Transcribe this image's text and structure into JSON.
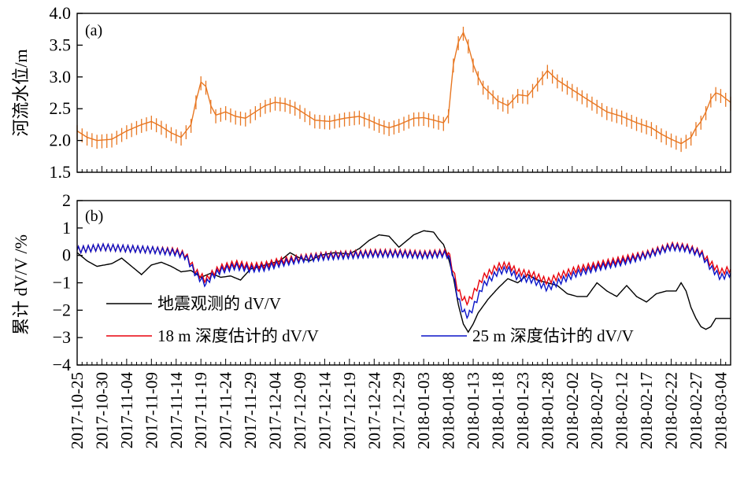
{
  "chart_data": [
    {
      "type": "line",
      "panel_label": "(a)",
      "ylabel": "河流水位/m",
      "ylim": [
        1.5,
        4.0
      ],
      "yticks": [
        "1.5",
        "2.0",
        "2.5",
        "3.0",
        "3.5",
        "4.0"
      ],
      "x_start": "2017-10-25",
      "x_end": "2018-03-06",
      "series": [
        {
          "name": "",
          "color": "#E87722",
          "points": [
            [
              "2017-10-25",
              2.15
            ],
            [
              "2017-10-27",
              2.05
            ],
            [
              "2017-10-29",
              2.0
            ],
            [
              "2017-11-01",
              2.02
            ],
            [
              "2017-11-04",
              2.15
            ],
            [
              "2017-11-07",
              2.25
            ],
            [
              "2017-11-09",
              2.3
            ],
            [
              "2017-11-11",
              2.22
            ],
            [
              "2017-11-13",
              2.12
            ],
            [
              "2017-11-15",
              2.05
            ],
            [
              "2017-11-17",
              2.25
            ],
            [
              "2017-11-18",
              2.62
            ],
            [
              "2017-11-19",
              2.92
            ],
            [
              "2017-11-20",
              2.85
            ],
            [
              "2017-11-21",
              2.55
            ],
            [
              "2017-11-22",
              2.4
            ],
            [
              "2017-11-24",
              2.45
            ],
            [
              "2017-11-26",
              2.38
            ],
            [
              "2017-11-28",
              2.35
            ],
            [
              "2017-11-30",
              2.45
            ],
            [
              "2017-12-02",
              2.55
            ],
            [
              "2017-12-04",
              2.6
            ],
            [
              "2017-12-06",
              2.58
            ],
            [
              "2017-12-08",
              2.52
            ],
            [
              "2017-12-10",
              2.42
            ],
            [
              "2017-12-12",
              2.32
            ],
            [
              "2017-12-15",
              2.3
            ],
            [
              "2017-12-18",
              2.35
            ],
            [
              "2017-12-21",
              2.38
            ],
            [
              "2017-12-23",
              2.32
            ],
            [
              "2017-12-25",
              2.25
            ],
            [
              "2017-12-27",
              2.2
            ],
            [
              "2017-12-29",
              2.25
            ],
            [
              "2018-01-01",
              2.35
            ],
            [
              "2018-01-03",
              2.36
            ],
            [
              "2018-01-06",
              2.3
            ],
            [
              "2018-01-07",
              2.28
            ],
            [
              "2018-01-08",
              2.4
            ],
            [
              "2018-01-09",
              3.2
            ],
            [
              "2018-01-10",
              3.55
            ],
            [
              "2018-01-11",
              3.7
            ],
            [
              "2018-01-12",
              3.5
            ],
            [
              "2018-01-13",
              3.2
            ],
            [
              "2018-01-14",
              3.0
            ],
            [
              "2018-01-15",
              2.85
            ],
            [
              "2018-01-17",
              2.7
            ],
            [
              "2018-01-18",
              2.62
            ],
            [
              "2018-01-20",
              2.55
            ],
            [
              "2018-01-22",
              2.72
            ],
            [
              "2018-01-24",
              2.7
            ],
            [
              "2018-01-26",
              2.9
            ],
            [
              "2018-01-28",
              3.1
            ],
            [
              "2018-01-30",
              2.95
            ],
            [
              "2018-02-01",
              2.85
            ],
            [
              "2018-02-03",
              2.75
            ],
            [
              "2018-02-06",
              2.6
            ],
            [
              "2018-02-09",
              2.45
            ],
            [
              "2018-02-12",
              2.38
            ],
            [
              "2018-02-15",
              2.28
            ],
            [
              "2018-02-18",
              2.2
            ],
            [
              "2018-02-20",
              2.1
            ],
            [
              "2018-02-22",
              2.02
            ],
            [
              "2018-02-24",
              1.95
            ],
            [
              "2018-02-26",
              2.05
            ],
            [
              "2018-02-27",
              2.2
            ],
            [
              "2018-02-28",
              2.3
            ],
            [
              "2018-03-01",
              2.45
            ],
            [
              "2018-03-02",
              2.65
            ],
            [
              "2018-03-03",
              2.75
            ],
            [
              "2018-03-04",
              2.72
            ],
            [
              "2018-03-06",
              2.6
            ]
          ]
        }
      ]
    },
    {
      "type": "line",
      "panel_label": "(b)",
      "ylabel": "累计 dV/V /%",
      "ylim": [
        -4,
        2
      ],
      "yticks": [
        "−4",
        "−3",
        "−2",
        "−1",
        "0",
        "1",
        "2"
      ],
      "x_start": "2017-10-25",
      "x_end": "2018-03-06",
      "xtick_labels": [
        "2017-10-25",
        "2017-10-30",
        "2017-11-04",
        "2017-11-09",
        "2017-11-14",
        "2017-11-19",
        "2017-11-24",
        "2017-11-29",
        "2017-12-04",
        "2017-12-09",
        "2017-12-14",
        "2017-12-19",
        "2017-12-24",
        "2017-12-29",
        "2018-01-03",
        "2018-01-08",
        "2018-01-13",
        "2018-01-18",
        "2018-01-23",
        "2018-01-28",
        "2018-02-02",
        "2018-02-07",
        "2018-02-12",
        "2018-02-17",
        "2018-02-22",
        "2018-02-27",
        "2018-03-04"
      ],
      "legend": {
        "placement": "lower-left"
      },
      "series": [
        {
          "name": "地震观测的 dV/V",
          "color": "#000000",
          "points": [
            [
              "2017-10-25",
              0.1
            ],
            [
              "2017-10-27",
              -0.2
            ],
            [
              "2017-10-29",
              -0.4
            ],
            [
              "2017-11-01",
              -0.3
            ],
            [
              "2017-11-03",
              -0.1
            ],
            [
              "2017-11-05",
              -0.4
            ],
            [
              "2017-11-07",
              -0.7
            ],
            [
              "2017-11-09",
              -0.35
            ],
            [
              "2017-11-11",
              -0.25
            ],
            [
              "2017-11-13",
              -0.4
            ],
            [
              "2017-11-15",
              -0.6
            ],
            [
              "2017-11-17",
              -0.55
            ],
            [
              "2017-11-19",
              -0.8
            ],
            [
              "2017-11-21",
              -0.65
            ],
            [
              "2017-11-23",
              -0.8
            ],
            [
              "2017-11-25",
              -0.75
            ],
            [
              "2017-11-27",
              -0.9
            ],
            [
              "2017-11-29",
              -0.5
            ],
            [
              "2017-12-01",
              -0.4
            ],
            [
              "2017-12-03",
              -0.3
            ],
            [
              "2017-12-05",
              -0.2
            ],
            [
              "2017-12-07",
              0.1
            ],
            [
              "2017-12-09",
              -0.1
            ],
            [
              "2017-12-11",
              -0.2
            ],
            [
              "2017-12-13",
              0.0
            ],
            [
              "2017-12-16",
              0.1
            ],
            [
              "2017-12-19",
              0.05
            ],
            [
              "2017-12-21",
              0.25
            ],
            [
              "2017-12-23",
              0.55
            ],
            [
              "2017-12-25",
              0.75
            ],
            [
              "2017-12-27",
              0.7
            ],
            [
              "2017-12-29",
              0.3
            ],
            [
              "2017-12-31",
              0.6
            ],
            [
              "2018-01-01",
              0.75
            ],
            [
              "2018-01-03",
              0.9
            ],
            [
              "2018-01-05",
              0.85
            ],
            [
              "2018-01-06",
              0.6
            ],
            [
              "2018-01-07",
              0.4
            ],
            [
              "2018-01-08",
              -0.1
            ],
            [
              "2018-01-09",
              -0.8
            ],
            [
              "2018-01-10",
              -1.8
            ],
            [
              "2018-01-11",
              -2.5
            ],
            [
              "2018-01-12",
              -2.8
            ],
            [
              "2018-01-13",
              -2.5
            ],
            [
              "2018-01-14",
              -2.1
            ],
            [
              "2018-01-16",
              -1.6
            ],
            [
              "2018-01-18",
              -1.2
            ],
            [
              "2018-01-20",
              -0.85
            ],
            [
              "2018-01-22",
              -1.0
            ],
            [
              "2018-01-24",
              -0.7
            ],
            [
              "2018-01-26",
              -0.9
            ],
            [
              "2018-01-28",
              -1.0
            ],
            [
              "2018-01-30",
              -1.1
            ],
            [
              "2018-02-01",
              -1.4
            ],
            [
              "2018-02-03",
              -1.5
            ],
            [
              "2018-02-05",
              -1.5
            ],
            [
              "2018-02-07",
              -1.0
            ],
            [
              "2018-02-09",
              -1.3
            ],
            [
              "2018-02-11",
              -1.5
            ],
            [
              "2018-02-13",
              -1.1
            ],
            [
              "2018-02-15",
              -1.5
            ],
            [
              "2018-02-17",
              -1.7
            ],
            [
              "2018-02-19",
              -1.4
            ],
            [
              "2018-02-21",
              -1.3
            ],
            [
              "2018-02-23",
              -1.3
            ],
            [
              "2018-02-24",
              -1.0
            ],
            [
              "2018-02-25",
              -1.3
            ],
            [
              "2018-02-26",
              -1.9
            ],
            [
              "2018-02-27",
              -2.3
            ],
            [
              "2018-02-28",
              -2.6
            ],
            [
              "2018-03-01",
              -2.7
            ],
            [
              "2018-03-02",
              -2.6
            ],
            [
              "2018-03-03",
              -2.3
            ],
            [
              "2018-03-06",
              -2.3
            ]
          ]
        },
        {
          "name": "18 m 深度估计的 dV/V",
          "color": "#E8000B",
          "points": [
            [
              "2017-10-25",
              0.2
            ],
            [
              "2017-10-30",
              0.3
            ],
            [
              "2017-11-04",
              0.25
            ],
            [
              "2017-11-09",
              0.2
            ],
            [
              "2017-11-14",
              0.15
            ],
            [
              "2017-11-16",
              0.0
            ],
            [
              "2017-11-18",
              -0.6
            ],
            [
              "2017-11-20",
              -0.9
            ],
            [
              "2017-11-21",
              -0.7
            ],
            [
              "2017-11-23",
              -0.45
            ],
            [
              "2017-11-26",
              -0.3
            ],
            [
              "2017-11-29",
              -0.4
            ],
            [
              "2017-12-02",
              -0.35
            ],
            [
              "2017-12-05",
              -0.2
            ],
            [
              "2017-12-09",
              -0.1
            ],
            [
              "2017-12-14",
              0.0
            ],
            [
              "2017-12-19",
              0.05
            ],
            [
              "2017-12-24",
              0.1
            ],
            [
              "2017-12-29",
              0.1
            ],
            [
              "2018-01-03",
              0.05
            ],
            [
              "2018-01-07",
              0.1
            ],
            [
              "2018-01-08",
              0.1
            ],
            [
              "2018-01-09",
              -0.6
            ],
            [
              "2018-01-10",
              -1.3
            ],
            [
              "2018-01-11",
              -1.6
            ],
            [
              "2018-01-12",
              -1.7
            ],
            [
              "2018-01-13",
              -1.4
            ],
            [
              "2018-01-15",
              -0.8
            ],
            [
              "2018-01-18",
              -0.4
            ],
            [
              "2018-01-20",
              -0.35
            ],
            [
              "2018-01-22",
              -0.6
            ],
            [
              "2018-01-25",
              -0.7
            ],
            [
              "2018-01-28",
              -0.95
            ],
            [
              "2018-01-31",
              -0.7
            ],
            [
              "2018-02-03",
              -0.5
            ],
            [
              "2018-02-07",
              -0.35
            ],
            [
              "2018-02-12",
              -0.15
            ],
            [
              "2018-02-17",
              0.05
            ],
            [
              "2018-02-22",
              0.35
            ],
            [
              "2018-02-25",
              0.3
            ],
            [
              "2018-02-28",
              0.1
            ],
            [
              "2018-03-02",
              -0.3
            ],
            [
              "2018-03-04",
              -0.6
            ],
            [
              "2018-03-06",
              -0.5
            ]
          ]
        },
        {
          "name": "25 m 深度估计的 dV/V",
          "color": "#0A14C8",
          "points": [
            [
              "2017-10-25",
              0.2
            ],
            [
              "2017-10-30",
              0.3
            ],
            [
              "2017-11-04",
              0.25
            ],
            [
              "2017-11-09",
              0.2
            ],
            [
              "2017-11-14",
              0.1
            ],
            [
              "2017-11-16",
              -0.05
            ],
            [
              "2017-11-18",
              -0.7
            ],
            [
              "2017-11-20",
              -1.05
            ],
            [
              "2017-11-21",
              -0.8
            ],
            [
              "2017-11-23",
              -0.55
            ],
            [
              "2017-11-26",
              -0.4
            ],
            [
              "2017-11-29",
              -0.5
            ],
            [
              "2017-12-02",
              -0.45
            ],
            [
              "2017-12-05",
              -0.3
            ],
            [
              "2017-12-09",
              -0.15
            ],
            [
              "2017-12-14",
              -0.05
            ],
            [
              "2017-12-19",
              0.0
            ],
            [
              "2017-12-24",
              0.05
            ],
            [
              "2017-12-29",
              0.05
            ],
            [
              "2018-01-03",
              0.0
            ],
            [
              "2018-01-07",
              0.05
            ],
            [
              "2018-01-08",
              0.0
            ],
            [
              "2018-01-09",
              -0.8
            ],
            [
              "2018-01-10",
              -1.6
            ],
            [
              "2018-01-11",
              -2.05
            ],
            [
              "2018-01-12",
              -2.2
            ],
            [
              "2018-01-13",
              -1.9
            ],
            [
              "2018-01-15",
              -1.1
            ],
            [
              "2018-01-18",
              -0.6
            ],
            [
              "2018-01-20",
              -0.5
            ],
            [
              "2018-01-22",
              -0.8
            ],
            [
              "2018-01-25",
              -0.9
            ],
            [
              "2018-01-28",
              -1.2
            ],
            [
              "2018-01-31",
              -0.9
            ],
            [
              "2018-02-03",
              -0.65
            ],
            [
              "2018-02-07",
              -0.45
            ],
            [
              "2018-02-12",
              -0.25
            ],
            [
              "2018-02-17",
              0.0
            ],
            [
              "2018-02-22",
              0.3
            ],
            [
              "2018-02-25",
              0.25
            ],
            [
              "2018-02-28",
              0.05
            ],
            [
              "2018-03-02",
              -0.45
            ],
            [
              "2018-03-04",
              -0.8
            ],
            [
              "2018-03-06",
              -0.65
            ]
          ]
        }
      ]
    }
  ]
}
